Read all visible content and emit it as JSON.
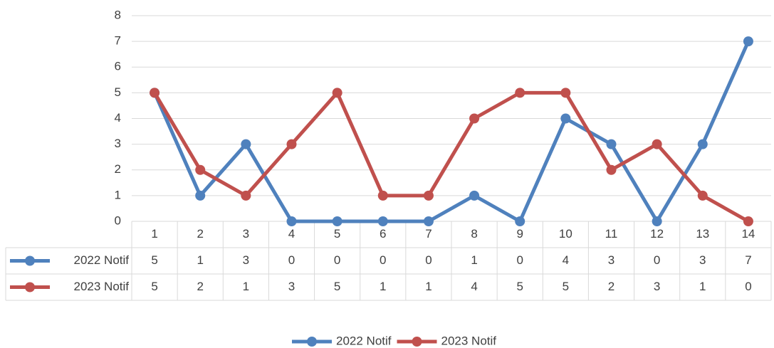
{
  "chart_data": {
    "type": "line",
    "categories": [
      "1",
      "2",
      "3",
      "4",
      "5",
      "6",
      "7",
      "8",
      "9",
      "10",
      "11",
      "12",
      "13",
      "14"
    ],
    "series": [
      {
        "name": "2022 Notif",
        "color": "#4f81bd",
        "values": [
          5,
          1,
          3,
          0,
          0,
          0,
          0,
          1,
          0,
          4,
          3,
          0,
          3,
          7
        ]
      },
      {
        "name": "2023 Notif",
        "color": "#c0504d",
        "values": [
          5,
          2,
          1,
          3,
          5,
          1,
          1,
          4,
          5,
          5,
          2,
          3,
          1,
          0
        ]
      }
    ],
    "ylim": [
      0,
      8
    ],
    "yticks": [
      0,
      1,
      2,
      3,
      4,
      5,
      6,
      7,
      8
    ],
    "grid": true,
    "data_table": true,
    "legend": "bottom"
  }
}
